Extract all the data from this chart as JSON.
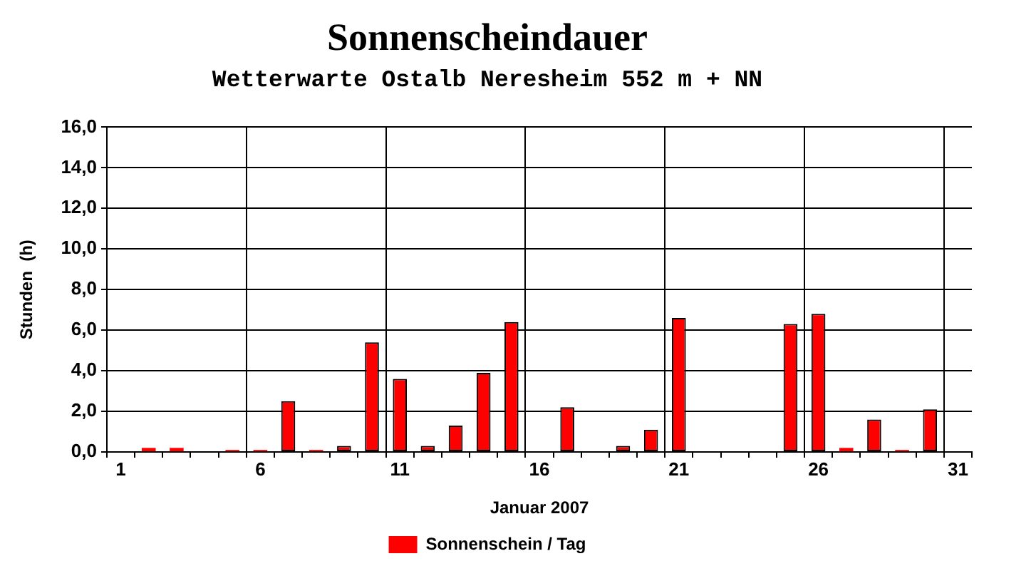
{
  "chart_data": {
    "type": "bar",
    "title": "Sonnenscheindauer",
    "subtitle": "Wetterwarte Ostalb Neresheim 552 m + NN",
    "xlabel": "Januar 2007",
    "ylabel": "Stunden  (h)",
    "categories": [
      "1",
      null,
      null,
      null,
      null,
      "6",
      null,
      null,
      null,
      null,
      "11",
      null,
      null,
      null,
      null,
      "16",
      null,
      null,
      null,
      null,
      "21",
      null,
      null,
      null,
      null,
      "26",
      null,
      null,
      null,
      null,
      "31"
    ],
    "series": [
      {
        "name": "Sonnenschein / Tag",
        "color": "#ff0000",
        "values": [
          0,
          0.2,
          0.2,
          0,
          0.1,
          0.1,
          2.5,
          0.1,
          0.3,
          5.4,
          3.6,
          0.3,
          1.3,
          3.9,
          6.4,
          0,
          2.2,
          0,
          0.3,
          1.1,
          6.6,
          0,
          0,
          0,
          6.3,
          6.8,
          0.2,
          1.6,
          0.1,
          2.1,
          0
        ]
      }
    ],
    "ylim": [
      0,
      16
    ],
    "yticks": [
      {
        "value": 0,
        "label": "0,0"
      },
      {
        "value": 2,
        "label": "2,0"
      },
      {
        "value": 4,
        "label": "4,0"
      },
      {
        "value": 6,
        "label": "6,0"
      },
      {
        "value": 8,
        "label": "8,0"
      },
      {
        "value": 10,
        "label": "10,0"
      },
      {
        "value": 12,
        "label": "12,0"
      },
      {
        "value": 14,
        "label": "14,0"
      },
      {
        "value": 16,
        "label": "16,0"
      }
    ],
    "grid": true,
    "legend": "bottom"
  }
}
